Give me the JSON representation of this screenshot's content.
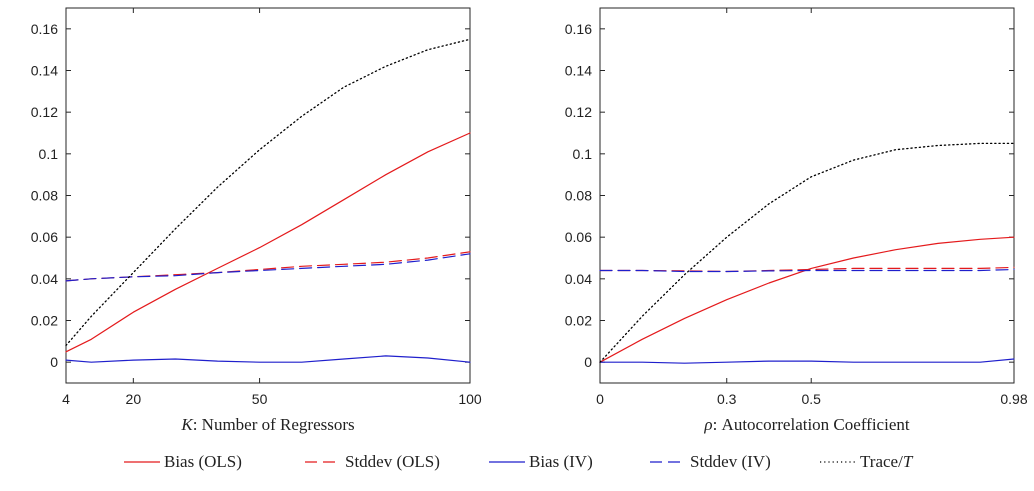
{
  "chart_data": [
    {
      "type": "line",
      "xlabel_var": "K",
      "xlabel_rest": ": Number of Regressors",
      "xlim": [
        4,
        100
      ],
      "ylim": [
        -0.01,
        0.17
      ],
      "xticks": [
        4,
        20,
        50,
        100
      ],
      "xtick_labels": [
        "4",
        "20",
        "50",
        "100"
      ],
      "yticks": [
        0,
        0.02,
        0.04,
        0.06,
        0.08,
        0.1,
        0.12,
        0.14,
        0.16
      ],
      "ytick_labels": [
        "0",
        "0.02",
        "0.04",
        "0.06",
        "0.08",
        "0.1",
        "0.12",
        "0.14",
        "0.16"
      ],
      "grid": false,
      "x": [
        4,
        10,
        20,
        30,
        40,
        50,
        60,
        70,
        80,
        90,
        100
      ],
      "series": [
        {
          "key": "bias_ols",
          "values": [
            0.005,
            0.011,
            0.024,
            0.035,
            0.045,
            0.055,
            0.066,
            0.078,
            0.09,
            0.101,
            0.11
          ]
        },
        {
          "key": "stddev_ols",
          "values": [
            0.039,
            0.04,
            0.041,
            0.042,
            0.043,
            0.0445,
            0.046,
            0.047,
            0.048,
            0.05,
            0.053
          ]
        },
        {
          "key": "bias_iv",
          "values": [
            0.001,
            0.0,
            0.001,
            0.0015,
            0.0005,
            0.0,
            0.0,
            0.0015,
            0.003,
            0.002,
            0.0
          ]
        },
        {
          "key": "stddev_iv",
          "values": [
            0.039,
            0.04,
            0.041,
            0.0415,
            0.043,
            0.044,
            0.045,
            0.046,
            0.047,
            0.049,
            0.052
          ]
        },
        {
          "key": "trace_t",
          "values": [
            0.008,
            0.022,
            0.043,
            0.064,
            0.084,
            0.102,
            0.118,
            0.132,
            0.142,
            0.15,
            0.155
          ]
        }
      ]
    },
    {
      "type": "line",
      "xlabel_var": "ρ",
      "xlabel_rest": ": Autocorrelation Coefficient",
      "xlim": [
        0,
        0.98
      ],
      "ylim": [
        -0.01,
        0.17
      ],
      "xticks": [
        0,
        0.3,
        0.5,
        0.98
      ],
      "xtick_labels": [
        "0",
        "0.3",
        "0.5",
        "0.98"
      ],
      "yticks": [
        0,
        0.02,
        0.04,
        0.06,
        0.08,
        0.1,
        0.12,
        0.14,
        0.16
      ],
      "ytick_labels": [
        "0",
        "0.02",
        "0.04",
        "0.06",
        "0.08",
        "0.1",
        "0.12",
        "0.14",
        "0.16"
      ],
      "grid": false,
      "x": [
        0,
        0.1,
        0.2,
        0.3,
        0.4,
        0.5,
        0.6,
        0.7,
        0.8,
        0.9,
        0.98
      ],
      "series": [
        {
          "key": "bias_ols",
          "values": [
            0.0,
            0.011,
            0.021,
            0.03,
            0.038,
            0.045,
            0.05,
            0.054,
            0.057,
            0.059,
            0.06
          ]
        },
        {
          "key": "stddev_ols",
          "values": [
            0.044,
            0.044,
            0.0438,
            0.0435,
            0.044,
            0.0445,
            0.045,
            0.045,
            0.045,
            0.045,
            0.0455
          ]
        },
        {
          "key": "bias_iv",
          "values": [
            0.0,
            0.0,
            -0.0005,
            0.0,
            0.0005,
            0.0005,
            0.0,
            0.0,
            0.0,
            0.0,
            0.0015
          ]
        },
        {
          "key": "stddev_iv",
          "values": [
            0.044,
            0.044,
            0.0435,
            0.0435,
            0.0438,
            0.044,
            0.044,
            0.044,
            0.044,
            0.044,
            0.0445
          ]
        },
        {
          "key": "trace_t",
          "values": [
            0.0,
            0.022,
            0.042,
            0.06,
            0.076,
            0.089,
            0.097,
            0.102,
            0.104,
            0.105,
            0.105
          ]
        }
      ]
    }
  ],
  "series_styles": {
    "bias_ols": {
      "color": "#e41a1c",
      "dash": "solid"
    },
    "stddev_ols": {
      "color": "#e41a1c",
      "dash": "dashed"
    },
    "bias_iv": {
      "color": "#1f1fcc",
      "dash": "solid"
    },
    "stddev_iv": {
      "color": "#1f1fcc",
      "dash": "dashed"
    },
    "trace_t": {
      "color": "#000000",
      "dash": "dotted"
    }
  },
  "legend": {
    "placement": "bottom",
    "entries": [
      {
        "key": "bias_ols",
        "label": "Bias (OLS)"
      },
      {
        "key": "stddev_ols",
        "label": "Stddev (OLS)"
      },
      {
        "key": "bias_iv",
        "label": "Bias (IV)"
      },
      {
        "key": "stddev_iv",
        "label": "Stddev (IV)"
      },
      {
        "key": "trace_t",
        "label": "Trace/",
        "label_var": "T"
      }
    ]
  }
}
